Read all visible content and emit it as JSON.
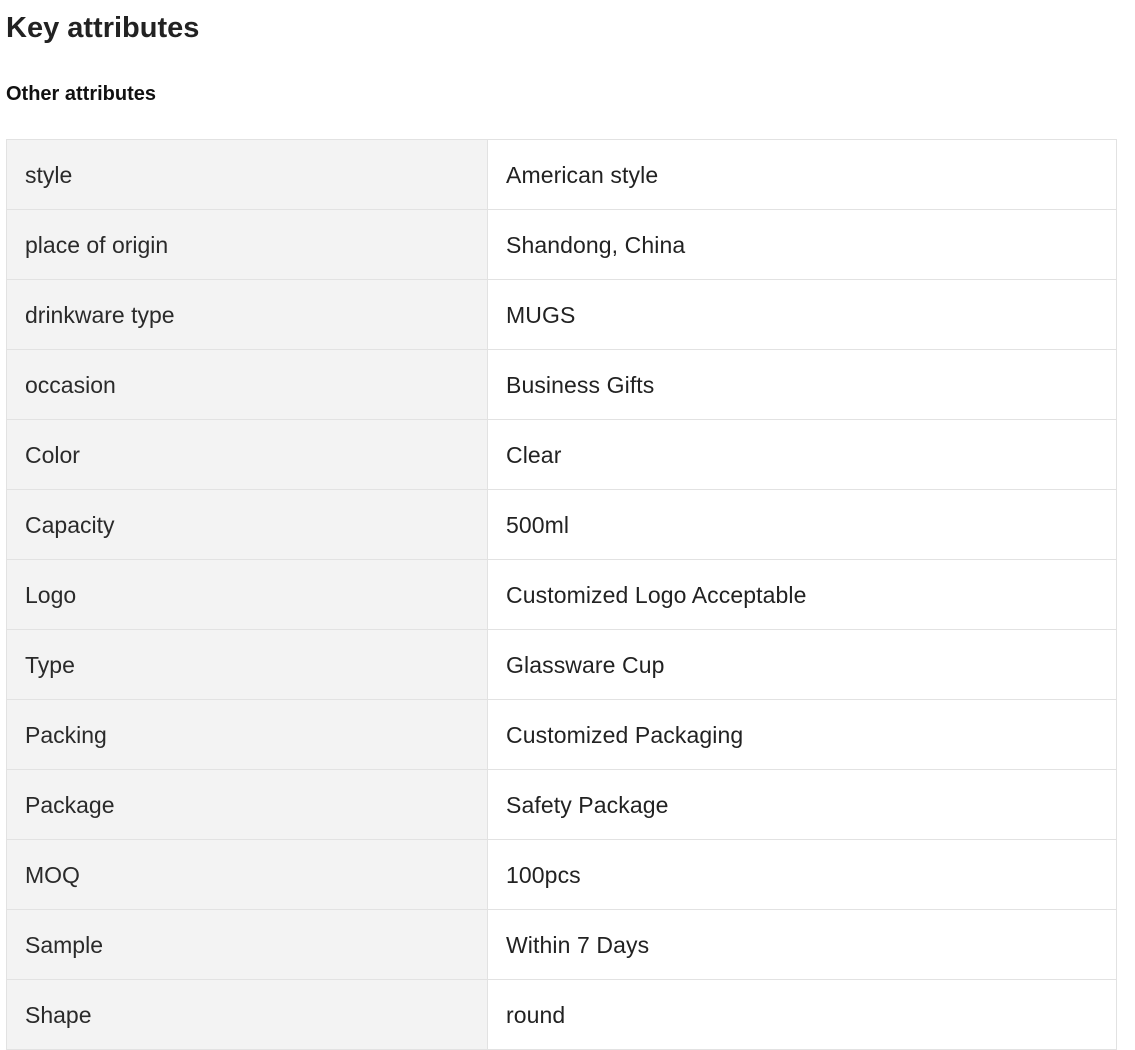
{
  "page": {
    "title": "Key attributes",
    "section_title": "Other attributes"
  },
  "attributes": [
    {
      "name": "style",
      "value": "American style"
    },
    {
      "name": "place of origin",
      "value": "Shandong, China"
    },
    {
      "name": "drinkware type",
      "value": "MUGS"
    },
    {
      "name": "occasion",
      "value": "Business Gifts"
    },
    {
      "name": "Color",
      "value": "Clear"
    },
    {
      "name": "Capacity",
      "value": "500ml"
    },
    {
      "name": "Logo",
      "value": "Customized Logo Acceptable"
    },
    {
      "name": "Type",
      "value": "Glassware Cup"
    },
    {
      "name": "Packing",
      "value": "Customized Packaging"
    },
    {
      "name": "Package",
      "value": "Safety Package"
    },
    {
      "name": "MOQ",
      "value": "100pcs"
    },
    {
      "name": "Sample",
      "value": "Within 7 Days"
    },
    {
      "name": "Shape",
      "value": "round"
    }
  ],
  "colors": {
    "name_cell_bg": "#f3f3f3",
    "value_cell_bg": "#ffffff",
    "border": "#e2e2e2",
    "text": "#222222"
  }
}
